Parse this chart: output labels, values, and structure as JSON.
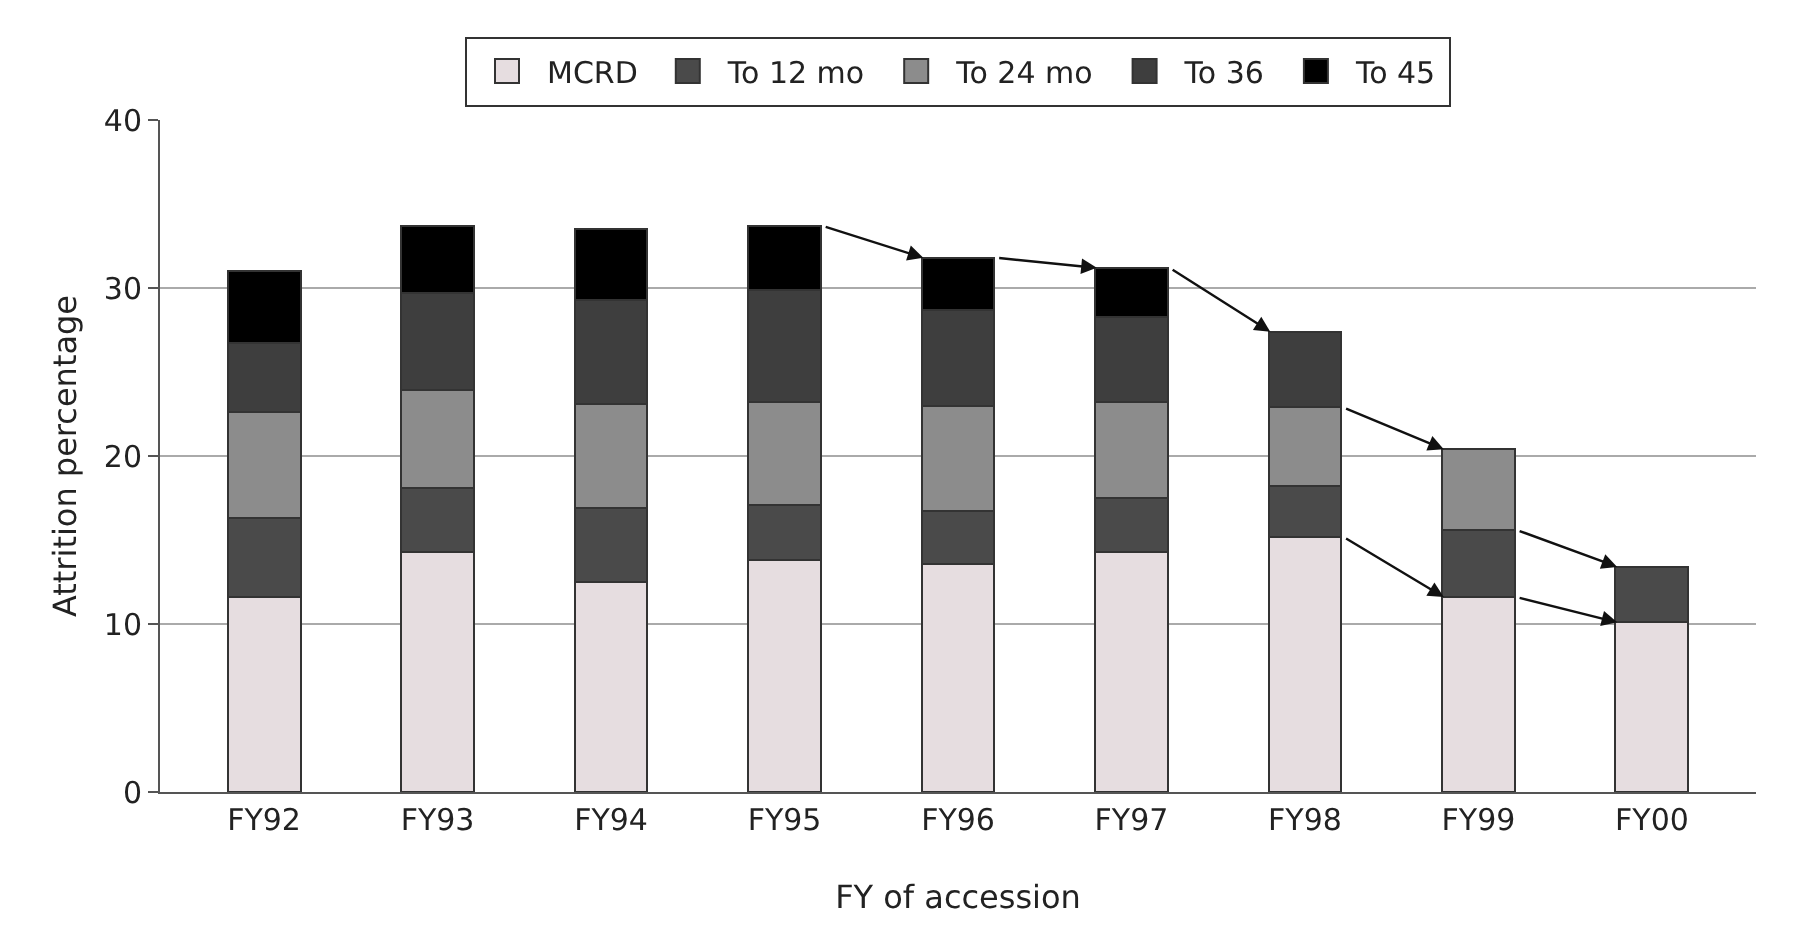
{
  "chart_data": {
    "type": "bar",
    "stacked": true,
    "xlabel": "FY of accession",
    "ylabel": "Attrition percentage",
    "categories": [
      "FY92",
      "FY93",
      "FY94",
      "FY95",
      "FY96",
      "FY97",
      "FY98",
      "FY99",
      "FY00"
    ],
    "series": [
      {
        "name": "MCRD",
        "color": "#e6dde0",
        "values": [
          11.6,
          14.3,
          12.5,
          13.8,
          13.6,
          14.3,
          15.2,
          11.6,
          10.1
        ]
      },
      {
        "name": "To 12 mo",
        "color": "#4a4a4a",
        "values": [
          4.7,
          3.8,
          4.4,
          3.3,
          3.1,
          3.2,
          3.0,
          4.0,
          3.3
        ]
      },
      {
        "name": "To 24 mo",
        "color": "#8c8c8c",
        "values": [
          6.3,
          5.8,
          6.2,
          6.1,
          6.3,
          5.7,
          4.7,
          4.8,
          null
        ]
      },
      {
        "name": "To 36",
        "color": "#3e3e3e",
        "values": [
          4.1,
          5.8,
          6.2,
          6.7,
          5.7,
          5.1,
          4.5,
          null,
          null
        ]
      },
      {
        "name": "To 45",
        "color": "#000000",
        "values": [
          4.3,
          4.0,
          4.2,
          3.8,
          3.1,
          2.9,
          null,
          null,
          null
        ]
      }
    ],
    "ylim": [
      0,
      40
    ],
    "yticks": [
      0,
      10,
      20,
      30,
      40
    ],
    "grid": "y",
    "legend": "top"
  }
}
